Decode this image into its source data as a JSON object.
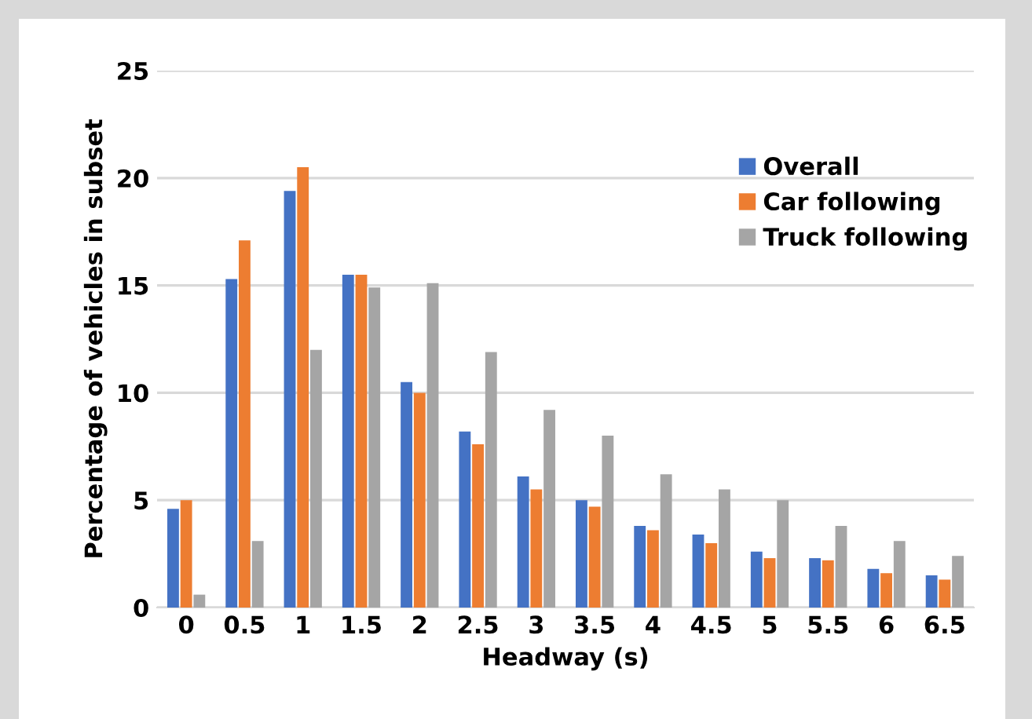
{
  "chart_data": {
    "type": "bar",
    "xlabel": "Headway (s)",
    "ylabel": "Percentage of vehicles in subset",
    "categories": [
      "0",
      "0.5",
      "1",
      "1.5",
      "2",
      "2.5",
      "3",
      "3.5",
      "4",
      "4.5",
      "5",
      "5.5",
      "6",
      "6.5"
    ],
    "series": [
      {
        "name": "Overall",
        "color": "#4472c4",
        "values": [
          4.6,
          15.3,
          19.4,
          15.5,
          10.5,
          8.2,
          6.1,
          5.0,
          3.8,
          3.4,
          2.6,
          2.3,
          1.8,
          1.5
        ]
      },
      {
        "name": "Car following",
        "color": "#ed7d31",
        "values": [
          5.0,
          17.1,
          20.5,
          15.5,
          10.0,
          7.6,
          5.5,
          4.7,
          3.6,
          3.0,
          2.3,
          2.2,
          1.6,
          1.3
        ]
      },
      {
        "name": "Truck following",
        "color": "#a5a5a5",
        "values": [
          0.6,
          3.1,
          12.0,
          14.9,
          15.1,
          11.9,
          9.2,
          8.0,
          6.2,
          5.5,
          5.0,
          3.8,
          3.1,
          2.4
        ]
      }
    ],
    "ylim": [
      0,
      25
    ],
    "yticks": [
      0,
      5,
      10,
      15,
      20,
      25
    ],
    "grid": "y",
    "legend": "top right"
  }
}
